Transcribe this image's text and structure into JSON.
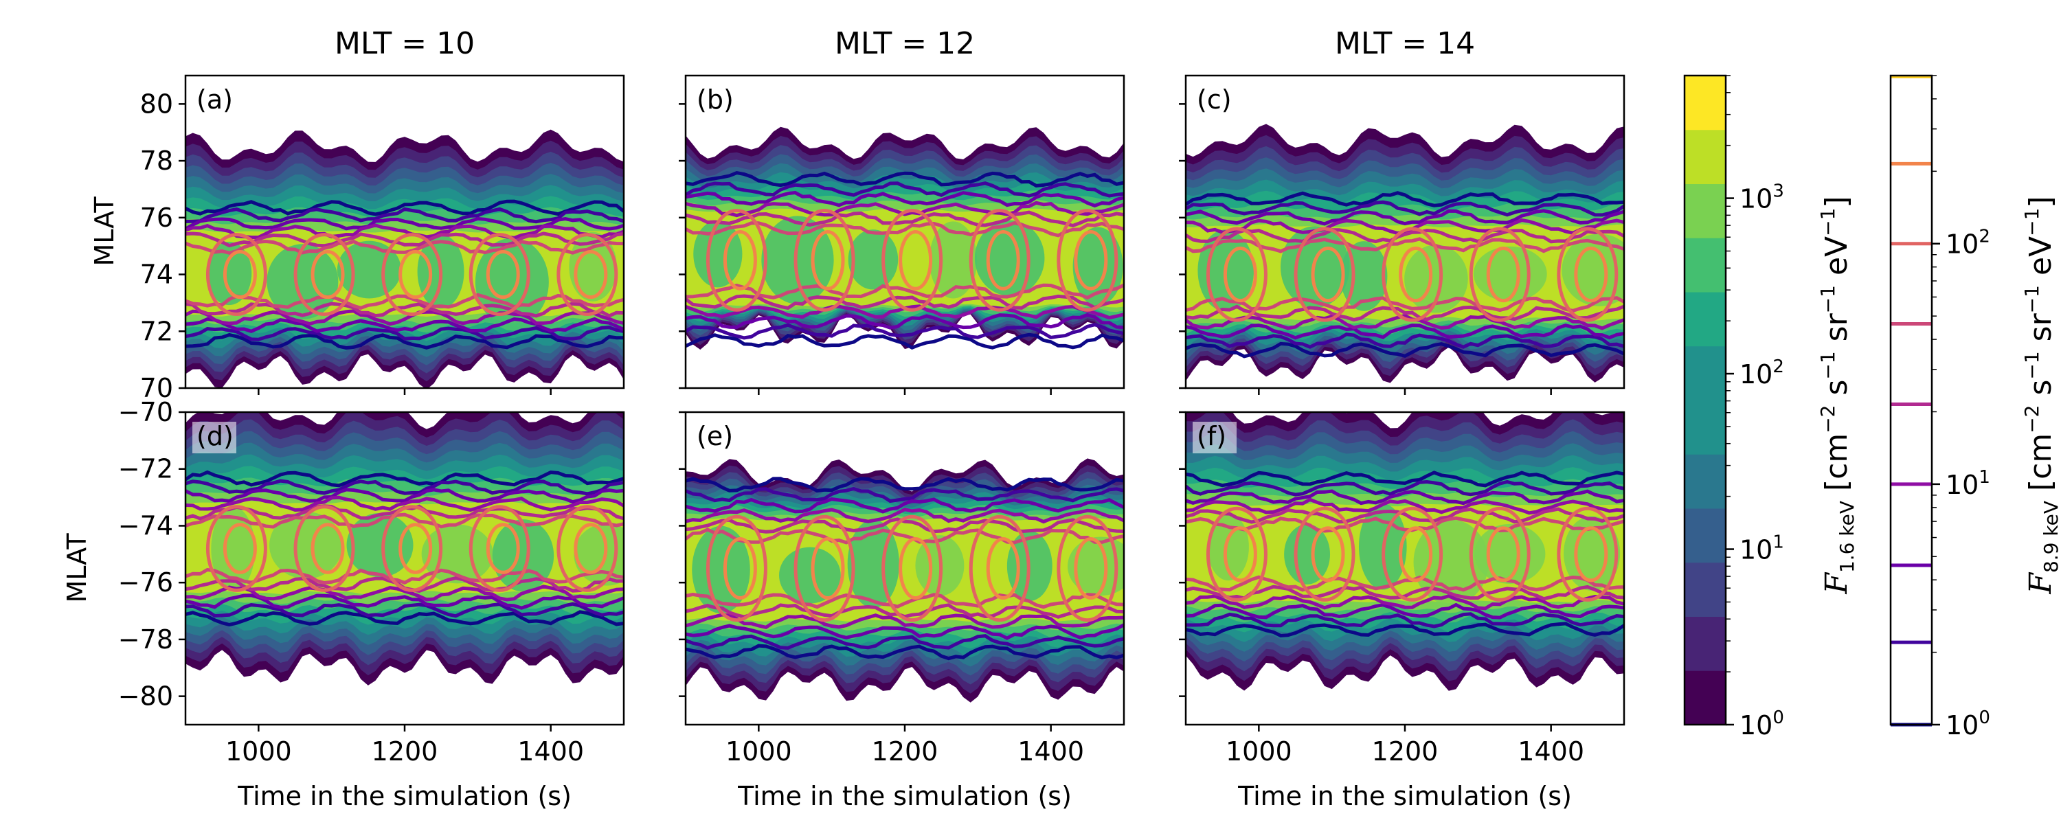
{
  "chart_data": {
    "type": "contour",
    "x_axis": {
      "label": "Time in the simulation (s)",
      "range": [
        900,
        1500
      ],
      "ticks": [
        1000,
        1200,
        1400
      ],
      "tick_labels": [
        "1000",
        "1200",
        "1400"
      ]
    },
    "y_axis": {
      "label": "MLAT",
      "north_range": [
        70,
        81
      ],
      "north_ticks": [
        70,
        72,
        74,
        76,
        78,
        80
      ],
      "north_tick_labels": [
        "70",
        "72",
        "74",
        "76",
        "78",
        "80"
      ],
      "south_range": [
        -81,
        -70
      ],
      "south_ticks": [
        -70,
        -72,
        -74,
        -76,
        -78,
        -80
      ],
      "south_tick_labels": [
        "−70",
        "−72",
        "−74",
        "−76",
        "−78",
        "−80"
      ]
    },
    "columns": [
      {
        "mlt": 10,
        "title": "MLT = 10"
      },
      {
        "mlt": 12,
        "title": "MLT = 12"
      },
      {
        "mlt": 14,
        "title": "MLT = 14"
      }
    ],
    "panels": [
      {
        "label": "(a)",
        "hemisphere": "north",
        "mlt": 10,
        "band_center": 74.0,
        "band_half": 2.0,
        "fill_top": 78.5,
        "fill_bottom": 70.6
      },
      {
        "label": "(b)",
        "hemisphere": "north",
        "mlt": 12,
        "band_center": 74.5,
        "band_half": 2.5,
        "fill_top": 78.6,
        "fill_bottom": 72.0
      },
      {
        "label": "(c)",
        "hemisphere": "north",
        "mlt": 14,
        "band_center": 74.0,
        "band_half": 2.3,
        "fill_top": 78.7,
        "fill_bottom": 70.8
      },
      {
        "label": "(d)",
        "hemisphere": "south",
        "mlt": 10,
        "band_center": -74.8,
        "band_half": 2.1,
        "fill_top": -70.0,
        "fill_bottom": -79.0
      },
      {
        "label": "(e)",
        "hemisphere": "south",
        "mlt": 12,
        "band_center": -75.5,
        "band_half": 2.6,
        "fill_top": -72.2,
        "fill_bottom": -79.6
      },
      {
        "label": "(f)",
        "hemisphere": "south",
        "mlt": 14,
        "band_center": -75.0,
        "band_half": 2.3,
        "fill_top": -70.0,
        "fill_bottom": -79.2
      }
    ],
    "colorbar_1": {
      "label": "F",
      "label_sub": "1.6 keV",
      "units": " [cm",
      "unit_parts": [
        "−2",
        " s",
        "−1",
        " sr",
        "−1",
        " eV",
        "−1",
        "]"
      ],
      "scale": "log",
      "range": [
        1,
        5000
      ],
      "ticks": [
        1,
        10,
        100,
        1000
      ],
      "tick_labels": [
        "10",
        "10",
        "10",
        "10"
      ],
      "tick_exponents": [
        "0",
        "1",
        "2",
        "3"
      ],
      "colormap": "viridis",
      "levels": 12
    },
    "colorbar_2": {
      "label": "F",
      "label_sub": "8.9 keV",
      "units": " [cm",
      "unit_parts": [
        "−2",
        " s",
        "−1",
        " sr",
        "−1",
        " eV",
        "−1",
        "]"
      ],
      "scale": "log",
      "range": [
        1,
        500
      ],
      "ticks": [
        1,
        10,
        100
      ],
      "tick_labels": [
        "10",
        "10",
        "10"
      ],
      "tick_exponents": [
        "0",
        "1",
        "2"
      ],
      "colormap": "plasma",
      "contour_levels": [
        1,
        2.2,
        4.6,
        10,
        21.5,
        46.4,
        100,
        215
      ]
    },
    "colors": {
      "viridis": [
        "#440154",
        "#482475",
        "#414487",
        "#355f8d",
        "#2a788e",
        "#21918c",
        "#22a884",
        "#44bf70",
        "#7ad151",
        "#bddf26",
        "#fde725"
      ],
      "plasma": [
        "#0d0887",
        "#41049d",
        "#6a00a8",
        "#8f0da4",
        "#b12a90",
        "#cc4778",
        "#e16462",
        "#f2844b",
        "#fca636",
        "#fcce25"
      ]
    }
  }
}
